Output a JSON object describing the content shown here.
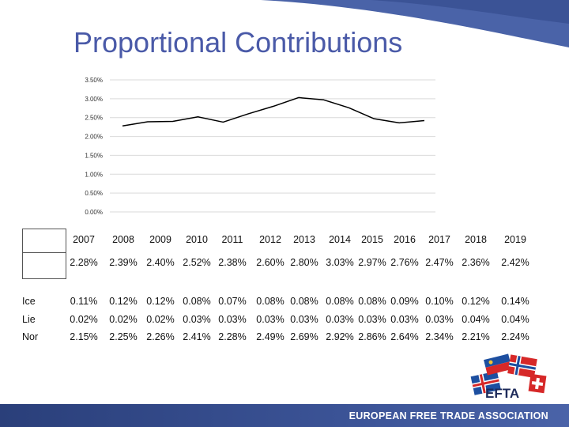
{
  "slide": {
    "title": "Proportional Contributions",
    "footer": "EUROPEAN FREE TRADE ASSOCIATION",
    "logo_text": "EFTA"
  },
  "colors": {
    "accent_blue": "#4a5aa8",
    "line": "#000000",
    "grid": "#d9d9d9",
    "footer": "#2a3f7a"
  },
  "chart_data": {
    "type": "line",
    "title": "",
    "xlabel": "",
    "ylabel": "",
    "ylim": [
      0,
      0.035
    ],
    "y_ticks": [
      "0.00%",
      "0.50%",
      "1.00%",
      "1.50%",
      "2.00%",
      "2.50%",
      "3.00%",
      "3.50%"
    ],
    "grid": true,
    "x": [
      "2007",
      "2008",
      "2009",
      "2010",
      "2011",
      "2012",
      "2013",
      "2014",
      "2015",
      "2016",
      "2017",
      "2018",
      "2019"
    ],
    "series": [
      {
        "name": "",
        "values": [
          0.0228,
          0.0239,
          0.024,
          0.0252,
          0.0238,
          0.026,
          0.028,
          0.0303,
          0.0297,
          0.0276,
          0.0247,
          0.0236,
          0.0242
        ]
      }
    ]
  },
  "table": {
    "years": [
      "2007",
      "2008",
      "2009",
      "2010",
      "2011",
      "2012",
      "2013",
      "2014",
      "2015",
      "2016",
      "2017",
      "2018",
      "2019"
    ],
    "total": [
      "2.28%",
      "2.39%",
      "2.40%",
      "2.52%",
      "2.38%",
      "2.60%",
      "2.80%",
      "3.03%",
      "2.97%",
      "2.76%",
      "2.47%",
      "2.36%",
      "2.42%"
    ],
    "rows": [
      {
        "label": "Ice",
        "values": [
          "0.11%",
          "0.12%",
          "0.12%",
          "0.08%",
          "0.07%",
          "0.08%",
          "0.08%",
          "0.08%",
          "0.08%",
          "0.09%",
          "0.10%",
          "0.12%",
          "0.14%"
        ]
      },
      {
        "label": "Lie",
        "values": [
          "0.02%",
          "0.02%",
          "0.02%",
          "0.03%",
          "0.03%",
          "0.03%",
          "0.03%",
          "0.03%",
          "0.03%",
          "0.03%",
          "0.03%",
          "0.04%",
          "0.04%"
        ]
      },
      {
        "label": "Nor",
        "values": [
          "2.15%",
          "2.25%",
          "2.26%",
          "2.41%",
          "2.28%",
          "2.49%",
          "2.69%",
          "2.92%",
          "2.86%",
          "2.64%",
          "2.34%",
          "2.21%",
          "2.24%"
        ]
      }
    ]
  }
}
